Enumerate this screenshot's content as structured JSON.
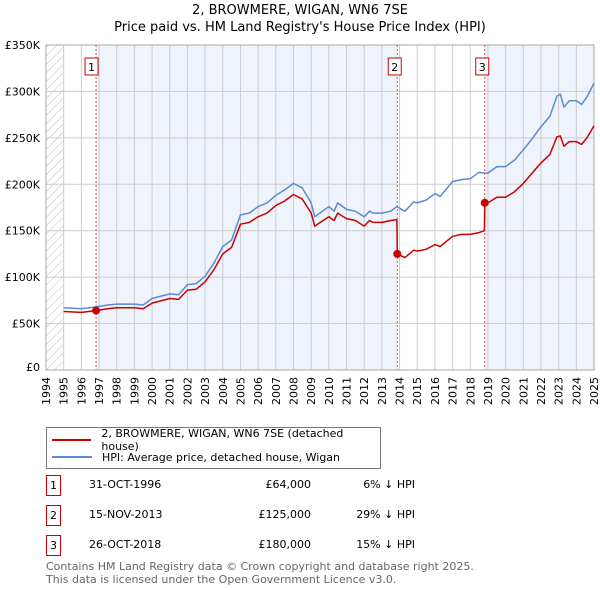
{
  "chart_data": {
    "type": "line",
    "title": "2, BROWMERE, WIGAN, WN6 7SE",
    "subtitle": "Price paid vs. HM Land Registry's House Price Index (HPI)",
    "xlabel": "",
    "ylabel": "",
    "xlim": [
      1994,
      2025
    ],
    "ylim": [
      0,
      350000
    ],
    "y_ticks": [
      0,
      50000,
      100000,
      150000,
      200000,
      250000,
      300000,
      350000
    ],
    "y_tick_labels": [
      "£0",
      "£50K",
      "£100K",
      "£150K",
      "£200K",
      "£250K",
      "£300K",
      "£350K"
    ],
    "x_ticks": [
      "1994",
      "1995",
      "1996",
      "1997",
      "1998",
      "1999",
      "2000",
      "2001",
      "2002",
      "2003",
      "2004",
      "2005",
      "2006",
      "2007",
      "2008",
      "2009",
      "2010",
      "2011",
      "2012",
      "2013",
      "2014",
      "2015",
      "2016",
      "2017",
      "2018",
      "2019",
      "2020",
      "2021",
      "2022",
      "2023",
      "2024",
      "2025"
    ],
    "grid": true,
    "series": [
      {
        "name": "2, BROWMERE, WIGAN, WN6 7SE (detached house)",
        "color": "#cc0000",
        "x": [
          1995,
          1996,
          1996.83,
          1997.5,
          1998,
          1999,
          1999.5,
          2000,
          2001,
          2001.5,
          2002,
          2002.5,
          2003,
          2003.5,
          2004,
          2004.5,
          2005,
          2005.5,
          2006,
          2006.5,
          2007,
          2007.5,
          2008,
          2008.5,
          2009,
          2009.2,
          2010,
          2010.3,
          2010.5,
          2011,
          2011.5,
          2012,
          2012.3,
          2012.5,
          2013,
          2013.5,
          2013.85,
          2013.87,
          2014.3,
          2014.8,
          2015,
          2015.5,
          2016,
          2016.3,
          2017,
          2017.5,
          2018,
          2018.5,
          2018.8,
          2018.82,
          2019,
          2019.5,
          2020,
          2020.5,
          2021,
          2021.5,
          2022,
          2022.5,
          2022.9,
          2023.1,
          2023.3,
          2023.6,
          2024,
          2024.3,
          2024.6,
          2025
        ],
        "y": [
          63000,
          62000,
          64000,
          66000,
          67000,
          67000,
          66000,
          72000,
          77000,
          76000,
          86000,
          87000,
          95000,
          108000,
          125000,
          132000,
          157000,
          159000,
          165000,
          169000,
          177000,
          182000,
          189000,
          184000,
          169000,
          155000,
          165000,
          161000,
          169000,
          163000,
          161000,
          155000,
          161000,
          159000,
          159000,
          161000,
          162000,
          125000,
          121000,
          129000,
          128000,
          130000,
          135000,
          133000,
          144000,
          146000,
          146000,
          148000,
          150000,
          180000,
          180000,
          186000,
          186000,
          192000,
          201000,
          212000,
          223000,
          232000,
          251000,
          252000,
          241000,
          246000,
          246000,
          243000,
          250000,
          263000
        ]
      },
      {
        "name": "HPI: Average price, detached house, Wigan",
        "color": "#5b8bd0",
        "x": [
          1995,
          1996,
          1996.83,
          1997.5,
          1998,
          1999,
          1999.5,
          2000,
          2001,
          2001.5,
          2002,
          2002.5,
          2003,
          2003.5,
          2004,
          2004.5,
          2005,
          2005.5,
          2006,
          2006.5,
          2007,
          2007.5,
          2008,
          2008.5,
          2009,
          2009.2,
          2010,
          2010.3,
          2010.5,
          2011,
          2011.5,
          2012,
          2012.3,
          2012.5,
          2013,
          2013.5,
          2013.85,
          2014.3,
          2014.8,
          2015,
          2015.5,
          2016,
          2016.3,
          2017,
          2017.5,
          2018,
          2018.5,
          2018.8,
          2019,
          2019.5,
          2020,
          2020.5,
          2021,
          2021.5,
          2022,
          2022.5,
          2022.9,
          2023.1,
          2023.3,
          2023.6,
          2024,
          2024.3,
          2024.6,
          2025
        ],
        "y": [
          67000,
          66000,
          68000,
          70000,
          71000,
          71000,
          70000,
          77000,
          82000,
          81000,
          92000,
          93000,
          101000,
          115000,
          133000,
          140000,
          167000,
          169000,
          176000,
          180000,
          188000,
          194000,
          201000,
          196000,
          180000,
          165000,
          176000,
          171000,
          180000,
          173000,
          171000,
          165000,
          171000,
          169000,
          169000,
          171000,
          176000,
          171000,
          181000,
          180000,
          183000,
          190000,
          187000,
          203000,
          205000,
          206000,
          213000,
          212000,
          212000,
          219000,
          219000,
          226000,
          237000,
          249000,
          262000,
          273000,
          295000,
          297000,
          283000,
          290000,
          290000,
          286000,
          294000,
          309000
        ]
      }
    ],
    "sales": [
      {
        "label": "1",
        "x": 1996.83,
        "y": 64000
      },
      {
        "label": "2",
        "x": 2013.87,
        "y": 125000
      },
      {
        "label": "3",
        "x": 2018.82,
        "y": 180000
      }
    ],
    "legend_position": "below"
  },
  "legend": {
    "property": "2, BROWMERE, WIGAN, WN6 7SE (detached house)",
    "hpi": "HPI: Average price, detached house, Wigan"
  },
  "transactions": [
    {
      "num": "1",
      "date": "31-OCT-1996",
      "price": "£64,000",
      "diff": "6% ↓ HPI"
    },
    {
      "num": "2",
      "date": "15-NOV-2013",
      "price": "£125,000",
      "diff": "29% ↓ HPI"
    },
    {
      "num": "3",
      "date": "26-OCT-2018",
      "price": "£180,000",
      "diff": "15% ↓ HPI"
    }
  ],
  "footer": {
    "line1": "Contains HM Land Registry data © Crown copyright and database right 2025.",
    "line2": "This data is licensed under the Open Government Licence v3.0."
  }
}
